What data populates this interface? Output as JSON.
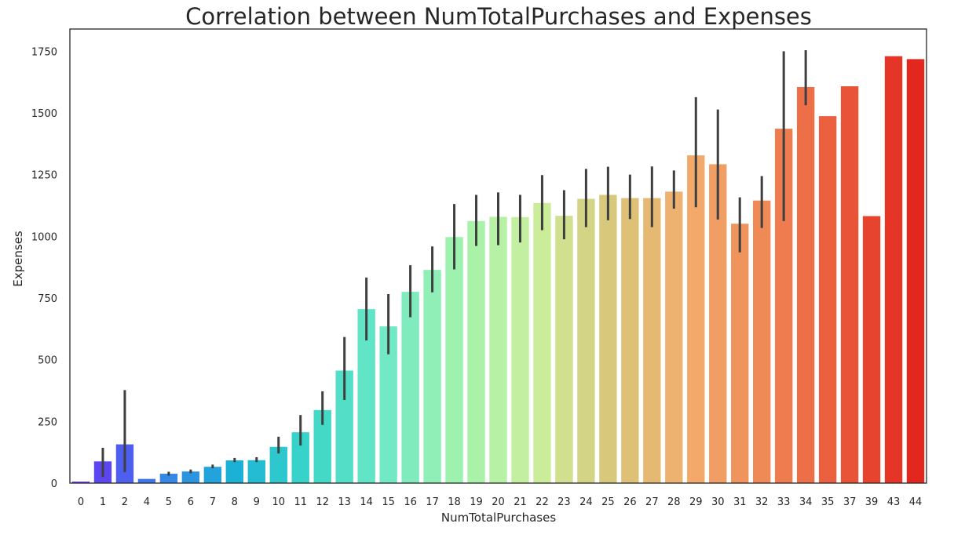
{
  "chart_data": {
    "type": "bar",
    "title": "Correlation between NumTotalPurchases and Expenses",
    "xlabel": "NumTotalPurchases",
    "ylabel": "Expenses",
    "ylim": [
      0,
      1840
    ],
    "yticks": [
      0,
      250,
      500,
      750,
      1000,
      1250,
      1500,
      1750
    ],
    "grid": false,
    "legend": "none",
    "palette": "rainbow",
    "categories": [
      "0",
      "1",
      "2",
      "4",
      "5",
      "6",
      "7",
      "8",
      "9",
      "10",
      "11",
      "12",
      "13",
      "14",
      "15",
      "16",
      "17",
      "18",
      "19",
      "20",
      "21",
      "22",
      "23",
      "24",
      "25",
      "26",
      "27",
      "28",
      "29",
      "30",
      "31",
      "32",
      "33",
      "34",
      "35",
      "37",
      "39",
      "43",
      "44"
    ],
    "values": [
      6,
      88,
      157,
      17,
      38,
      47,
      66,
      92,
      93,
      147,
      206,
      296,
      456,
      705,
      635,
      775,
      864,
      997,
      1062,
      1079,
      1078,
      1135,
      1083,
      1152,
      1168,
      1155,
      1155,
      1181,
      1328,
      1292,
      1051,
      1145,
      1436,
      1605,
      1487,
      1608,
      1082,
      1730,
      1718
    ],
    "error_low": [
      null,
      25,
      45,
      null,
      30,
      40,
      60,
      85,
      85,
      120,
      152,
      236,
      337,
      578,
      522,
      672,
      773,
      866,
      961,
      964,
      975,
      1025,
      988,
      1037,
      1065,
      1070,
      1037,
      1112,
      1118,
      1068,
      935,
      1034,
      1062,
      1531,
      null,
      null,
      null,
      null,
      null
    ],
    "error_high": [
      null,
      143,
      377,
      null,
      46,
      55,
      75,
      102,
      105,
      188,
      276,
      372,
      592,
      833,
      766,
      883,
      959,
      1131,
      1168,
      1178,
      1168,
      1248,
      1187,
      1273,
      1282,
      1250,
      1283,
      1267,
      1564,
      1514,
      1158,
      1244,
      1750,
      1754,
      null,
      null,
      null,
      null,
      null
    ],
    "colors": {
      "axis": "#262626",
      "errorbar": "#3f3f3f",
      "palette_stops": [
        "#6a2ff3",
        "#3a80ea",
        "#1ab0d6",
        "#3ad6c8",
        "#6ee8c5",
        "#a2f3ad",
        "#caef9c",
        "#d9c67a",
        "#f2ad6d",
        "#ef8855",
        "#ea5a3c",
        "#e3261e"
      ]
    }
  }
}
